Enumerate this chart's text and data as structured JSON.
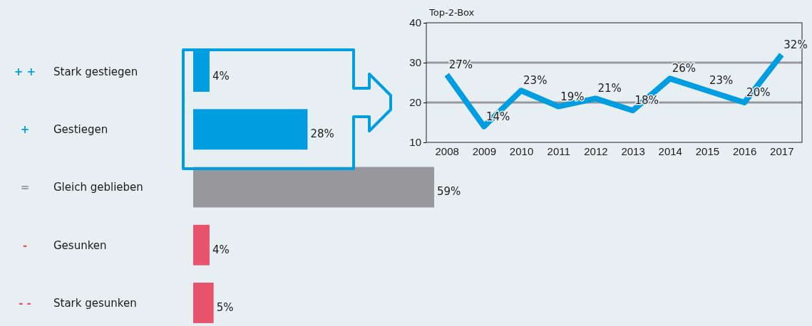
{
  "chart_data": [
    {
      "type": "bar",
      "orientation": "horizontal",
      "categories": [
        "Stark gestiegen",
        "Gestiegen",
        "Gleich geblieben",
        "Gesunken",
        "Stark gesunken"
      ],
      "values": [
        4,
        28,
        59,
        4,
        5
      ],
      "colors": [
        "#009de0",
        "#009de0",
        "#98979c",
        "#e8526a",
        "#e8526a"
      ],
      "value_labels": [
        "4%",
        "28%",
        "59%",
        "4%",
        "5%"
      ],
      "annotations": [
        "+ +",
        "+",
        "=",
        "-",
        "- -"
      ]
    },
    {
      "type": "line",
      "title": "Top-2-Box",
      "categories": [
        "2008",
        "2009",
        "2010",
        "2011",
        "2012",
        "2013",
        "2014",
        "2015",
        "2016",
        "2017"
      ],
      "series": [
        {
          "color": "#009de0",
          "values": [
            27,
            14,
            23,
            19,
            21,
            18,
            26,
            23,
            20,
            32
          ]
        }
      ],
      "value_labels": [
        "27%",
        "14%",
        "23%",
        "19%",
        "21%",
        "18%",
        "26%",
        "23%",
        "20%",
        "32%"
      ],
      "ylim": [
        10,
        40
      ],
      "yticks": [
        10,
        20,
        30,
        40
      ],
      "grid": "y"
    }
  ]
}
